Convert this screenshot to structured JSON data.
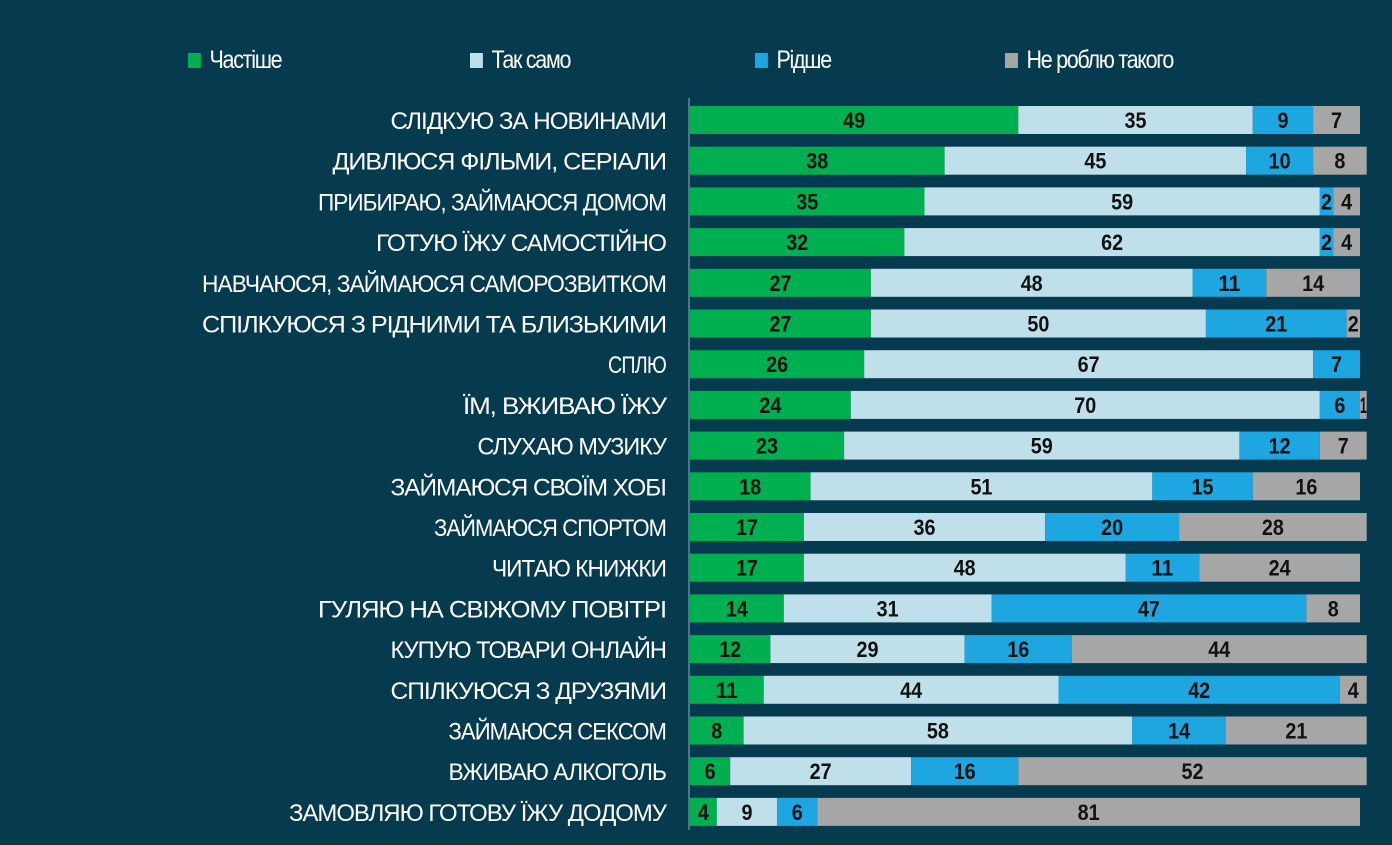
{
  "chart_data": {
    "type": "bar",
    "orientation": "horizontal",
    "stacked": true,
    "legend_position": "top",
    "grid": false,
    "xlim": [
      0,
      100
    ],
    "colors": [
      "#00b050",
      "#bfe0ea",
      "#1ea6e0",
      "#a6a6a6"
    ],
    "series": [
      {
        "name": "Частіше",
        "values": [
          49,
          38,
          35,
          32,
          27,
          27,
          26,
          24,
          23,
          18,
          17,
          17,
          14,
          12,
          11,
          8,
          6,
          4
        ]
      },
      {
        "name": "Так само",
        "values": [
          35,
          45,
          59,
          62,
          48,
          50,
          67,
          70,
          59,
          51,
          36,
          48,
          31,
          29,
          44,
          58,
          27,
          9
        ]
      },
      {
        "name": "Рідше",
        "values": [
          9,
          10,
          2,
          2,
          11,
          21,
          7,
          6,
          12,
          15,
          20,
          11,
          47,
          16,
          42,
          14,
          16,
          6
        ]
      },
      {
        "name": "Не роблю такого",
        "values": [
          7,
          8,
          4,
          4,
          14,
          2,
          0,
          1,
          7,
          16,
          28,
          24,
          8,
          44,
          4,
          21,
          52,
          81
        ]
      }
    ],
    "categories": [
      "СЛІДКУЮ ЗА НОВИНАМИ",
      "ДИВЛЮСЯ ФІЛЬМИ, СЕРІАЛИ",
      "ПРИБИРАЮ, ЗАЙМАЮСЯ ДОМОМ",
      "ГОТУЮ ЇЖУ САМОСТІЙНО",
      "НАВЧАЮСЯ, ЗАЙМАЮСЯ САМОРОЗВИТКОМ",
      "СПІЛКУЮСЯ З РІДНИМИ ТА БЛИЗЬКИМИ",
      "СПЛЮ",
      "ЇМ, ВЖИВАЮ ЇЖУ",
      "СЛУХАЮ МУЗИКУ",
      "ЗАЙМАЮСЯ СВОЇМ ХОБІ",
      "ЗАЙМАЮСЯ СПОРТОМ",
      "ЧИТАЮ КНИЖКИ",
      "ГУЛЯЮ НА СВІЖОМУ ПОВІТРІ",
      "КУПУЮ ТОВАРИ ОНЛАЙН",
      "СПІЛКУЮСЯ З ДРУЗЯМИ",
      "ЗАЙМАЮСЯ СЕКСОМ",
      "ВЖИВАЮ АЛКОГОЛЬ",
      "ЗАМОВЛЯЮ ГОТОВУ ЇЖУ ДОДОМУ"
    ]
  }
}
